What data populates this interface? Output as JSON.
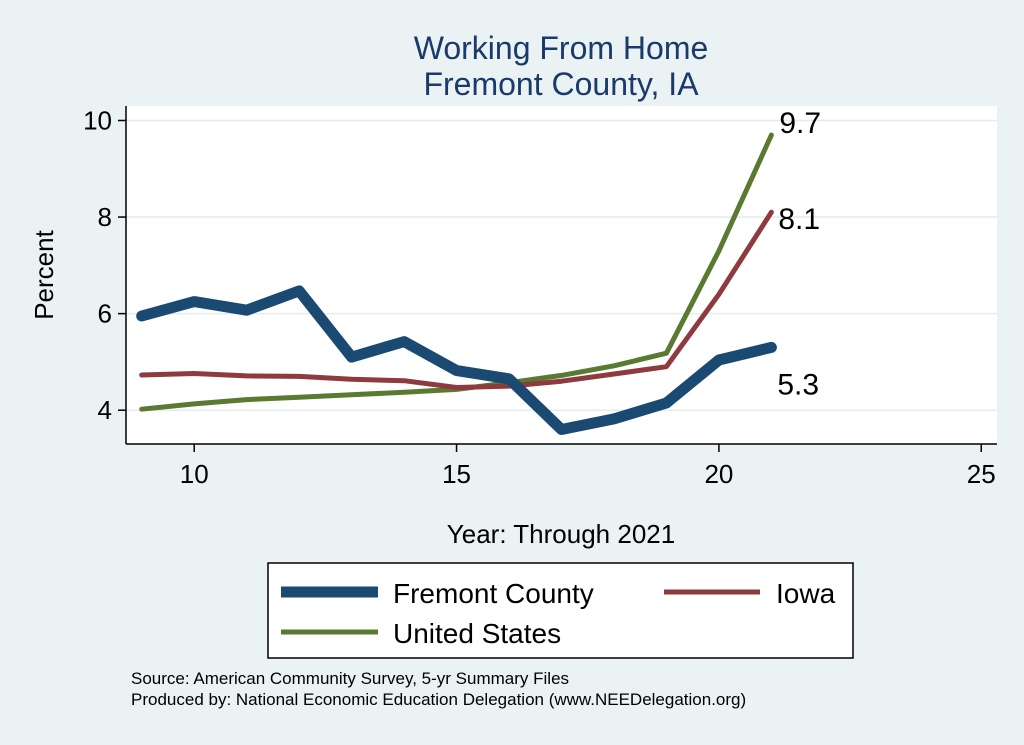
{
  "chart_data": {
    "type": "line",
    "title": [
      "Working From Home",
      "Fremont County, IA"
    ],
    "xlabel": "Year: Through 2021",
    "ylabel": "Percent",
    "xlim": [
      8.7,
      25.3
    ],
    "ylim": [
      3.3,
      10.3
    ],
    "xticks": [
      10,
      15,
      20,
      25
    ],
    "yticks": [
      4,
      6,
      8,
      10
    ],
    "grid": true,
    "x": [
      9,
      10,
      11,
      12,
      13,
      14,
      15,
      16,
      17,
      18,
      19,
      20,
      21
    ],
    "series": [
      {
        "name": "Fremont County",
        "color": "#1a4a72",
        "values": [
          5.95,
          6.25,
          6.07,
          6.47,
          5.1,
          5.42,
          4.82,
          4.65,
          3.6,
          3.82,
          4.15,
          5.04,
          5.3
        ],
        "end_label": "5.3"
      },
      {
        "name": "Iowa",
        "color": "#8f3a3e",
        "values": [
          4.73,
          4.76,
          4.71,
          4.7,
          4.64,
          4.61,
          4.47,
          4.5,
          4.6,
          4.75,
          4.9,
          6.4,
          8.1
        ],
        "end_label": "8.1"
      },
      {
        "name": "United States",
        "color": "#5a7a32",
        "values": [
          4.02,
          4.13,
          4.22,
          4.27,
          4.32,
          4.37,
          4.43,
          4.57,
          4.72,
          4.92,
          5.18,
          7.3,
          9.7
        ],
        "end_label": "9.7"
      }
    ],
    "legend": {
      "placement": "bottom",
      "entries": [
        "Fremont County",
        "Iowa",
        "United States"
      ]
    },
    "notes": [
      "Source: American Community Survey, 5-yr Summary Files",
      "Produced by: National Economic Education Delegation (www.NEEDelegation.org)"
    ]
  }
}
